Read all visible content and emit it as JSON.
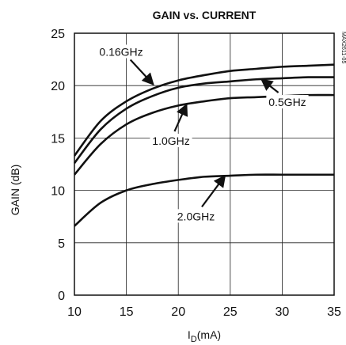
{
  "chart_data": {
    "type": "line",
    "title": "GAIN vs. CURRENT",
    "xlabel": "I",
    "xlabel_sub": "D",
    "xlabel_unit": "(mA)",
    "ylabel": "GAIN (dB)",
    "side_note": "MAX2611-05",
    "xlim": [
      10,
      35
    ],
    "ylim": [
      0,
      25
    ],
    "x_ticks": [
      "10",
      "15",
      "20",
      "25",
      "30",
      "35"
    ],
    "y_ticks": [
      "0",
      "5",
      "10",
      "15",
      "20",
      "25"
    ],
    "grid": true,
    "x": [
      10,
      12.5,
      15,
      17.5,
      20,
      22.5,
      25,
      27.5,
      30,
      32.5,
      35
    ],
    "series": [
      {
        "name": "0.16GHz",
        "values": [
          13.3,
          16.6,
          18.5,
          19.7,
          20.5,
          21.0,
          21.4,
          21.6,
          21.8,
          21.9,
          22.0
        ]
      },
      {
        "name": "0.5GHz",
        "values": [
          12.6,
          15.8,
          17.8,
          19.0,
          19.8,
          20.2,
          20.4,
          20.6,
          20.7,
          20.8,
          20.8
        ]
      },
      {
        "name": "1.0GHz",
        "values": [
          11.5,
          14.4,
          16.3,
          17.4,
          18.1,
          18.5,
          18.8,
          18.9,
          19.0,
          19.1,
          19.1
        ]
      },
      {
        "name": "2.0GHz",
        "values": [
          6.6,
          8.8,
          10.0,
          10.6,
          11.0,
          11.3,
          11.4,
          11.5,
          11.5,
          11.5,
          11.5
        ]
      }
    ],
    "annotations": [
      {
        "series": "0.16GHz",
        "label": "0.16GHz",
        "label_at": [
          14.5,
          23.0
        ],
        "arrow_to": [
          17.6,
          20.1
        ]
      },
      {
        "series": "0.5GHz",
        "label": "0.5GHz",
        "label_at": [
          30.5,
          18.2
        ],
        "arrow_to": [
          28.0,
          20.6
        ]
      },
      {
        "series": "1.0GHz",
        "label": "1.0GHz",
        "label_at": [
          19.3,
          14.5
        ],
        "arrow_to": [
          20.8,
          18.2
        ]
      },
      {
        "series": "2.0GHz",
        "label": "2.0GHz",
        "label_at": [
          21.7,
          7.3
        ],
        "arrow_to": [
          24.5,
          11.4
        ]
      }
    ]
  }
}
